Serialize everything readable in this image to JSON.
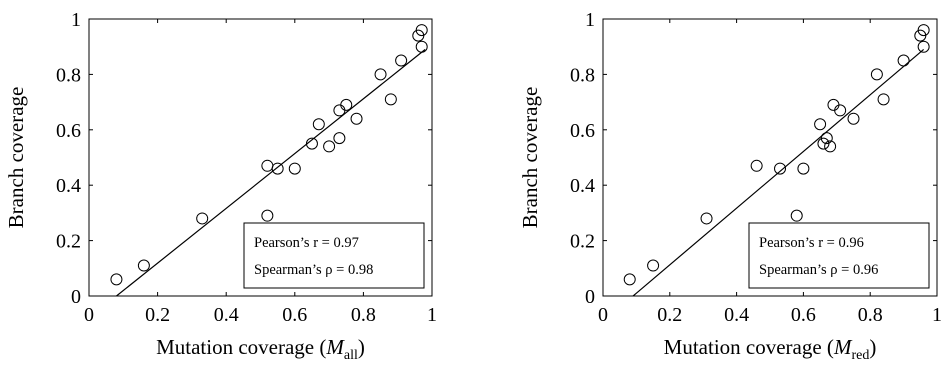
{
  "chart_data": [
    {
      "type": "scatter",
      "xlabel_prefix": "Mutation coverage (",
      "xlabel_var": "M",
      "xlabel_sub": "all",
      "xlabel_suffix": ")",
      "ylabel": "Branch coverage",
      "xlim": [
        0,
        1
      ],
      "ylim": [
        0,
        1
      ],
      "xticks": [
        "0",
        "0.2",
        "0.4",
        "0.6",
        "0.8",
        "1"
      ],
      "yticks": [
        "0",
        "0.2",
        "0.4",
        "0.6",
        "0.8",
        "1"
      ],
      "grid": false,
      "legend_position": "bottom-right",
      "legend": [
        "Pearson’s r = 0.97",
        "Spearman’s ρ = 0.98"
      ],
      "fit_line": {
        "x": [
          0.08,
          0.98
        ],
        "y": [
          0.0,
          0.89
        ]
      },
      "points": [
        {
          "x": 0.08,
          "y": 0.06
        },
        {
          "x": 0.16,
          "y": 0.11
        },
        {
          "x": 0.33,
          "y": 0.28
        },
        {
          "x": 0.52,
          "y": 0.29
        },
        {
          "x": 0.52,
          "y": 0.47
        },
        {
          "x": 0.55,
          "y": 0.46
        },
        {
          "x": 0.6,
          "y": 0.46
        },
        {
          "x": 0.65,
          "y": 0.55
        },
        {
          "x": 0.67,
          "y": 0.62
        },
        {
          "x": 0.7,
          "y": 0.54
        },
        {
          "x": 0.73,
          "y": 0.57
        },
        {
          "x": 0.73,
          "y": 0.67
        },
        {
          "x": 0.75,
          "y": 0.69
        },
        {
          "x": 0.78,
          "y": 0.64
        },
        {
          "x": 0.85,
          "y": 0.8
        },
        {
          "x": 0.88,
          "y": 0.71
        },
        {
          "x": 0.91,
          "y": 0.85
        },
        {
          "x": 0.96,
          "y": 0.94
        },
        {
          "x": 0.97,
          "y": 0.96
        },
        {
          "x": 0.97,
          "y": 0.9
        }
      ]
    },
    {
      "type": "scatter",
      "xlabel_prefix": "Mutation coverage (",
      "xlabel_var": "M",
      "xlabel_sub": "red",
      "xlabel_suffix": ")",
      "ylabel": "Branch coverage",
      "xlim": [
        0,
        1
      ],
      "ylim": [
        0,
        1
      ],
      "xticks": [
        "0",
        "0.2",
        "0.4",
        "0.6",
        "0.8",
        "1"
      ],
      "yticks": [
        "0",
        "0.2",
        "0.4",
        "0.6",
        "0.8",
        "1"
      ],
      "grid": false,
      "legend_position": "bottom-right",
      "legend": [
        "Pearson’s r = 0.96",
        "Spearman’s ρ = 0.96"
      ],
      "fit_line": {
        "x": [
          0.09,
          0.96
        ],
        "y": [
          0.0,
          0.89
        ]
      },
      "points": [
        {
          "x": 0.08,
          "y": 0.06
        },
        {
          "x": 0.15,
          "y": 0.11
        },
        {
          "x": 0.31,
          "y": 0.28
        },
        {
          "x": 0.46,
          "y": 0.47
        },
        {
          "x": 0.53,
          "y": 0.46
        },
        {
          "x": 0.58,
          "y": 0.29
        },
        {
          "x": 0.6,
          "y": 0.46
        },
        {
          "x": 0.65,
          "y": 0.62
        },
        {
          "x": 0.66,
          "y": 0.55
        },
        {
          "x": 0.67,
          "y": 0.57
        },
        {
          "x": 0.68,
          "y": 0.54
        },
        {
          "x": 0.69,
          "y": 0.69
        },
        {
          "x": 0.71,
          "y": 0.67
        },
        {
          "x": 0.75,
          "y": 0.64
        },
        {
          "x": 0.82,
          "y": 0.8
        },
        {
          "x": 0.84,
          "y": 0.71
        },
        {
          "x": 0.9,
          "y": 0.85
        },
        {
          "x": 0.95,
          "y": 0.94
        },
        {
          "x": 0.96,
          "y": 0.96
        },
        {
          "x": 0.96,
          "y": 0.9
        }
      ]
    }
  ]
}
